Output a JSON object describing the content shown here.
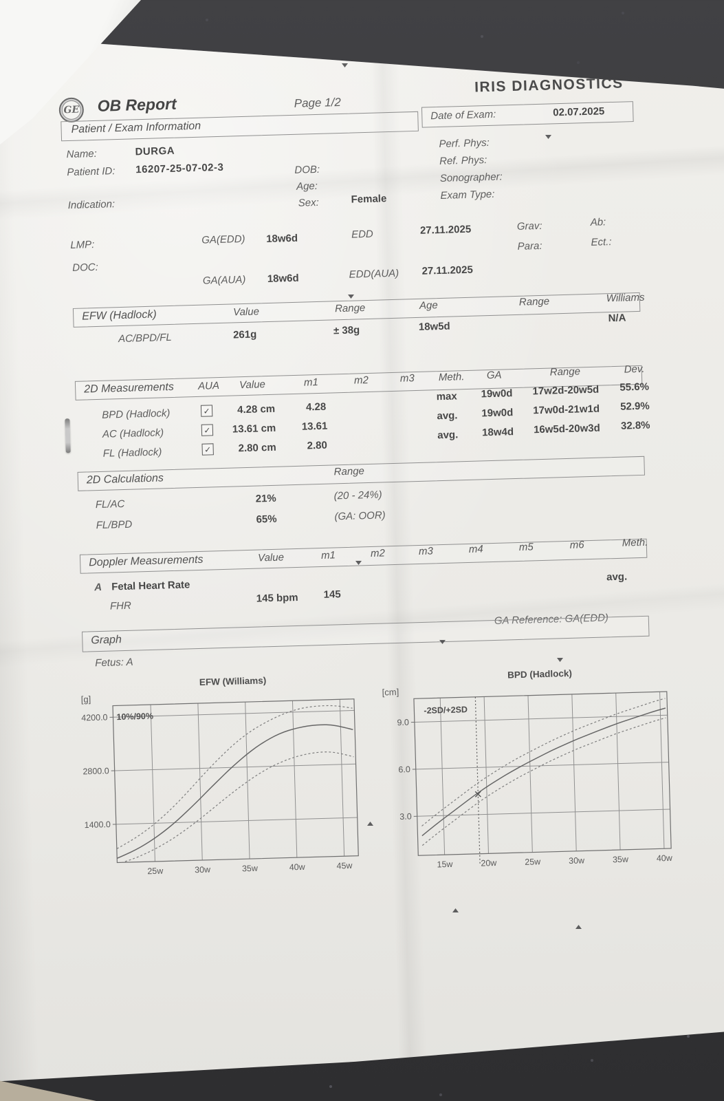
{
  "photo": {
    "desk_color": "#3a3a3d",
    "paper_color": "#ebeae6",
    "ink_color": "#555555"
  },
  "header": {
    "logo_text": "GE",
    "title": "OB Report",
    "page": "Page 1/2",
    "clinic": "IRIS DIAGNOSTICS",
    "date_label": "Date of Exam:",
    "date_value": "02.07.2025"
  },
  "patient": {
    "section_title": "Patient / Exam Information",
    "name_label": "Name:",
    "name_value": "DURGA",
    "id_label": "Patient ID:",
    "id_value": "16207-25-07-02-3",
    "indication_label": "Indication:",
    "dob_label": "DOB:",
    "age_label": "Age:",
    "sex_label": "Sex:",
    "sex_value": "Female",
    "perf_label": "Perf. Phys:",
    "ref_label": "Ref. Phys:",
    "sono_label": "Sonographer:",
    "exam_label": "Exam Type:"
  },
  "obstetric": {
    "lmp_label": "LMP:",
    "doc_label": "DOC:",
    "ga_edd_label": "GA(EDD)",
    "ga_edd_value": "18w6d",
    "edd_label": "EDD",
    "edd_value": "27.11.2025",
    "ga_aua_label": "GA(AUA)",
    "ga_aua_value": "18w6d",
    "edd_aua_label": "EDD(AUA)",
    "edd_aua_value": "27.11.2025",
    "grav_label": "Grav:",
    "para_label": "Para:",
    "ab_label": "Ab:",
    "ect_label": "Ect.:"
  },
  "efw": {
    "section_title": "EFW (Hadlock)",
    "col_value": "Value",
    "col_range": "Range",
    "col_age": "Age",
    "col_range2": "Range",
    "col_method": "Williams",
    "row_label": "AC/BPD/FL",
    "row_value": "261g",
    "row_range": "± 38g",
    "row_age": "18w5d",
    "row_method_value": "N/A"
  },
  "meas2d": {
    "section_title": "2D Measurements",
    "col_aua": "AUA",
    "col_value": "Value",
    "col_m1": "m1",
    "col_m2": "m2",
    "col_m3": "m3",
    "col_meth": "Meth.",
    "col_ga": "GA",
    "col_range": "Range",
    "col_dev": "Dev.",
    "rows": [
      {
        "label": "BPD (Hadlock)",
        "value": "4.28 cm",
        "m1": "4.28",
        "meth": "max",
        "ga": "19w0d",
        "range": "17w2d-20w5d",
        "dev": "55.6%"
      },
      {
        "label": "AC (Hadlock)",
        "value": "13.61 cm",
        "m1": "13.61",
        "meth": "avg.",
        "ga": "19w0d",
        "range": "17w0d-21w1d",
        "dev": "52.9%"
      },
      {
        "label": "FL (Hadlock)",
        "value": "2.80 cm",
        "m1": "2.80",
        "meth": "avg.",
        "ga": "18w4d",
        "range": "16w5d-20w3d",
        "dev": "32.8%"
      }
    ]
  },
  "calc2d": {
    "section_title": "2D Calculations",
    "col_range": "Range",
    "rows": [
      {
        "label": "FL/AC",
        "value": "21%",
        "range": "(20 - 24%)"
      },
      {
        "label": "FL/BPD",
        "value": "65%",
        "range": "(GA: OOR)"
      }
    ]
  },
  "doppler": {
    "section_title": "Doppler Measurements",
    "col_value": "Value",
    "col_m1": "m1",
    "col_m2": "m2",
    "col_m3": "m3",
    "col_m4": "m4",
    "col_m5": "m5",
    "col_m6": "m6",
    "col_meth": "Meth.",
    "group_prefix": "A",
    "group_label": "Fetal Heart Rate",
    "row_label": "FHR",
    "row_value": "145 bpm",
    "row_m1": "145",
    "row_meth": "avg."
  },
  "graph": {
    "ga_reference": "GA Reference: GA(EDD)",
    "section_title": "Graph",
    "fetus_label": "Fetus: A"
  },
  "icons": {
    "check": "✓"
  },
  "chart_data": [
    {
      "type": "line",
      "title": "EFW (Williams)",
      "ylabel": "[g]",
      "legend": "10%/90%",
      "legend_position": "on-top-gridline",
      "grid": true,
      "xlim": [
        21,
        46.5
      ],
      "ylim": [
        400,
        4500
      ],
      "x_tick_values": [
        25,
        30,
        35,
        40,
        45
      ],
      "x_ticks": [
        "25w",
        "30w",
        "35w",
        "40w",
        "45w"
      ],
      "y_ticks": [
        4200,
        2800,
        1400
      ],
      "y_tick_labels": [
        "4200.0",
        "2800.0",
        "1400.0"
      ],
      "series": [
        {
          "name": "90%",
          "style": "dashed",
          "x": [
            21,
            22,
            23,
            24,
            25,
            26,
            27,
            28,
            29,
            30,
            31,
            32,
            33,
            34,
            35,
            36,
            37,
            38,
            39,
            40,
            41,
            42,
            43,
            44,
            45,
            46.3
          ],
          "y": [
            760,
            890,
            1030,
            1190,
            1370,
            1570,
            1790,
            2030,
            2280,
            2540,
            2790,
            3030,
            3260,
            3470,
            3650,
            3810,
            3940,
            4060,
            4160,
            4240,
            4300,
            4330,
            4345,
            4345,
            4320,
            4260
          ]
        },
        {
          "name": "50%",
          "style": "solid",
          "x": [
            21,
            22,
            23,
            24,
            25,
            26,
            27,
            28,
            29,
            30,
            31,
            32,
            33,
            34,
            35,
            36,
            37,
            38,
            39,
            40,
            41,
            42,
            43,
            44,
            45,
            46.3
          ],
          "y": [
            510,
            610,
            720,
            850,
            1000,
            1170,
            1360,
            1570,
            1790,
            2020,
            2260,
            2490,
            2720,
            2930,
            3130,
            3310,
            3460,
            3590,
            3690,
            3760,
            3810,
            3840,
            3850,
            3840,
            3790,
            3700
          ]
        },
        {
          "name": "10%",
          "style": "dashed",
          "x": [
            21,
            22,
            23,
            24,
            25,
            26,
            27,
            28,
            29,
            30,
            31,
            32,
            33,
            34,
            35,
            36,
            37,
            38,
            39,
            40,
            41,
            42,
            43,
            44,
            45,
            46.3
          ],
          "y": [
            355,
            430,
            510,
            610,
            720,
            850,
            990,
            1150,
            1320,
            1500,
            1690,
            1880,
            2070,
            2250,
            2420,
            2580,
            2720,
            2840,
            2940,
            3020,
            3080,
            3120,
            3140,
            3130,
            3080,
            2990
          ]
        }
      ]
    },
    {
      "type": "line",
      "title": "BPD (Hadlock)",
      "ylabel": "[cm]",
      "legend": "-2SD/+2SD",
      "legend_position": "top-left",
      "grid": true,
      "xlim": [
        12,
        40.8
      ],
      "ylim": [
        0.5,
        10.5
      ],
      "x_tick_values": [
        15,
        20,
        25,
        30,
        35,
        40
      ],
      "x_ticks": [
        "15w",
        "20w",
        "25w",
        "30w",
        "35w",
        "40w"
      ],
      "y_ticks": [
        9,
        6,
        3
      ],
      "y_tick_labels": [
        "9.0",
        "6.0",
        "3.0"
      ],
      "vline": {
        "x": 19,
        "style": "dotted"
      },
      "marker": {
        "x": 19,
        "y": 4.3,
        "symbol": "x"
      },
      "series": [
        {
          "name": "+2SD",
          "style": "dashed",
          "x": [
            12.5,
            14,
            15.5,
            17,
            18.5,
            20,
            21.5,
            23,
            24.5,
            26,
            27.5,
            29,
            30.5,
            32,
            33.5,
            35,
            36.5,
            38,
            39.5,
            40.6
          ],
          "y": [
            2.37,
            3.02,
            3.62,
            4.22,
            4.82,
            5.37,
            5.87,
            6.34,
            6.77,
            7.17,
            7.57,
            7.92,
            8.27,
            8.57,
            8.87,
            9.17,
            9.42,
            9.67,
            9.92,
            10.07
          ]
        },
        {
          "name": "mean",
          "style": "solid",
          "x": [
            12.5,
            14,
            15.5,
            17,
            18.5,
            20,
            21.5,
            23,
            24.5,
            26,
            27.5,
            29,
            30.5,
            32,
            33.5,
            35,
            36.5,
            38,
            39.5,
            40.6
          ],
          "y": [
            1.75,
            2.4,
            3.0,
            3.6,
            4.2,
            4.75,
            5.25,
            5.72,
            6.15,
            6.55,
            6.95,
            7.3,
            7.65,
            7.95,
            8.25,
            8.55,
            8.8,
            9.05,
            9.3,
            9.45
          ]
        },
        {
          "name": "-2SD",
          "style": "dashed",
          "x": [
            12.5,
            14,
            15.5,
            17,
            18.5,
            20,
            21.5,
            23,
            24.5,
            26,
            27.5,
            29,
            30.5,
            32,
            33.5,
            35,
            36.5,
            38,
            39.5,
            40.6
          ],
          "y": [
            1.13,
            1.78,
            2.38,
            2.98,
            3.58,
            4.13,
            4.63,
            5.1,
            5.53,
            5.93,
            6.33,
            6.68,
            7.03,
            7.33,
            7.63,
            7.93,
            8.18,
            8.43,
            8.68,
            8.83
          ]
        }
      ]
    }
  ]
}
